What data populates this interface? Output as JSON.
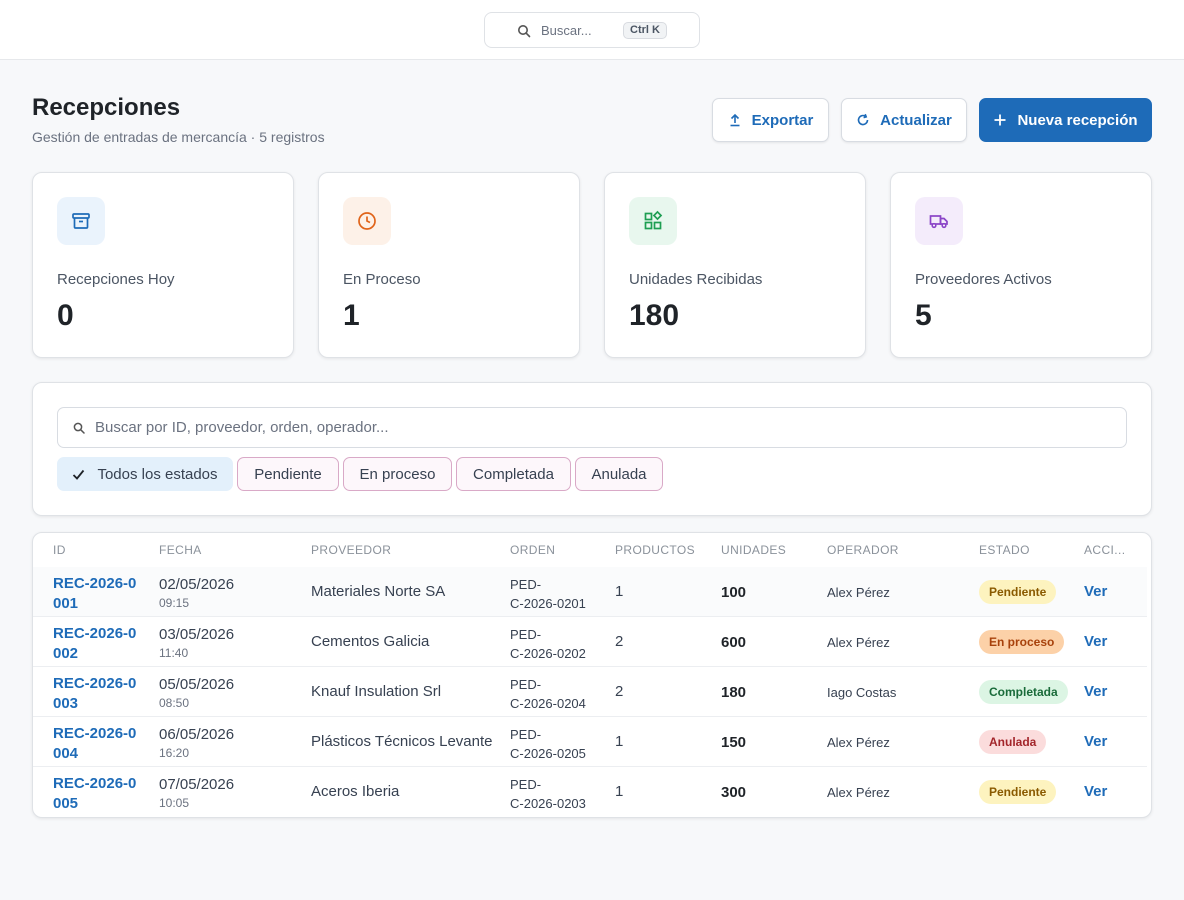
{
  "topbar": {
    "search_placeholder": "Buscar...",
    "shortcut": "Ctrl K"
  },
  "header": {
    "title": "Recepciones",
    "subtitle": "Gestión de entradas de mercancía · 5 registros",
    "export_label": "Exportar",
    "refresh_label": "Actualizar",
    "new_label": "Nueva recepción"
  },
  "stats": [
    {
      "label": "Recepciones Hoy",
      "value": "0",
      "icon": "archive-box-icon",
      "color": "#1e6bb8",
      "bg": "#eaf3fc"
    },
    {
      "label": "En Proceso",
      "value": "1",
      "icon": "clock-icon",
      "color": "#e0641a",
      "bg": "#fdf1e8"
    },
    {
      "label": "Unidades Recibidas",
      "value": "180",
      "icon": "grid-shapes-icon",
      "color": "#1e9e52",
      "bg": "#e8f7ee"
    },
    {
      "label": "Proveedores Activos",
      "value": "5",
      "icon": "truck-icon",
      "color": "#8a44c7",
      "bg": "#f4ecfb"
    }
  ],
  "filters": {
    "search_placeholder": "Buscar por ID, proveedor, orden, operador...",
    "chips": [
      "Todos los estados",
      "Pendiente",
      "En proceso",
      "Completada",
      "Anulada"
    ]
  },
  "table": {
    "headers": [
      "ID",
      "FECHA",
      "PROVEEDOR",
      "ORDEN",
      "PRODUCTOS",
      "UNIDADES",
      "OPERADOR",
      "ESTADO",
      "ACCI..."
    ],
    "rows": [
      {
        "id1": "REC-2026-0",
        "id2": "001",
        "date": "02/05/2026",
        "time": "09:15",
        "proveedor": "Materiales Norte SA",
        "orden1": "PED-",
        "orden2": "C-2026-0201",
        "productos": "1",
        "unidades": "100",
        "operador": "Alex Pérez",
        "estado": "Pendiente",
        "accion": "Ver"
      },
      {
        "id1": "REC-2026-0",
        "id2": "002",
        "date": "03/05/2026",
        "time": "11:40",
        "proveedor": "Cementos Galicia",
        "orden1": "PED-",
        "orden2": "C-2026-0202",
        "productos": "2",
        "unidades": "600",
        "operador": "Alex Pérez",
        "estado": "En proceso",
        "accion": "Ver"
      },
      {
        "id1": "REC-2026-0",
        "id2": "003",
        "date": "05/05/2026",
        "time": "08:50",
        "proveedor": "Knauf Insulation Srl",
        "orden1": "PED-",
        "orden2": "C-2026-0204",
        "productos": "2",
        "unidades": "180",
        "operador": "Iago Costas",
        "estado": "Completada",
        "accion": "Ver"
      },
      {
        "id1": "REC-2026-0",
        "id2": "004",
        "date": "06/05/2026",
        "time": "16:20",
        "proveedor": "Plásticos Técnicos Levante",
        "orden1": "PED-",
        "orden2": "C-2026-0205",
        "productos": "1",
        "unidades": "150",
        "operador": "Alex Pérez",
        "estado": "Anulada",
        "accion": "Ver"
      },
      {
        "id1": "REC-2026-0",
        "id2": "005",
        "date": "07/05/2026",
        "time": "10:05",
        "proveedor": "Aceros Iberia",
        "orden1": "PED-",
        "orden2": "C-2026-0203",
        "productos": "1",
        "unidades": "300",
        "operador": "Alex Pérez",
        "estado": "Pendiente",
        "accion": "Ver"
      }
    ]
  },
  "status_colors": {
    "Pendiente": {
      "bg": "#fdf3bf",
      "fg": "#8a5a00"
    },
    "En proceso": {
      "bg": "#fcd1a8",
      "fg": "#a8420c"
    },
    "Completada": {
      "bg": "#dcf5e4",
      "fg": "#1a6b3a"
    },
    "Anulada": {
      "bg": "#fbdcdc",
      "fg": "#a3262b"
    }
  }
}
